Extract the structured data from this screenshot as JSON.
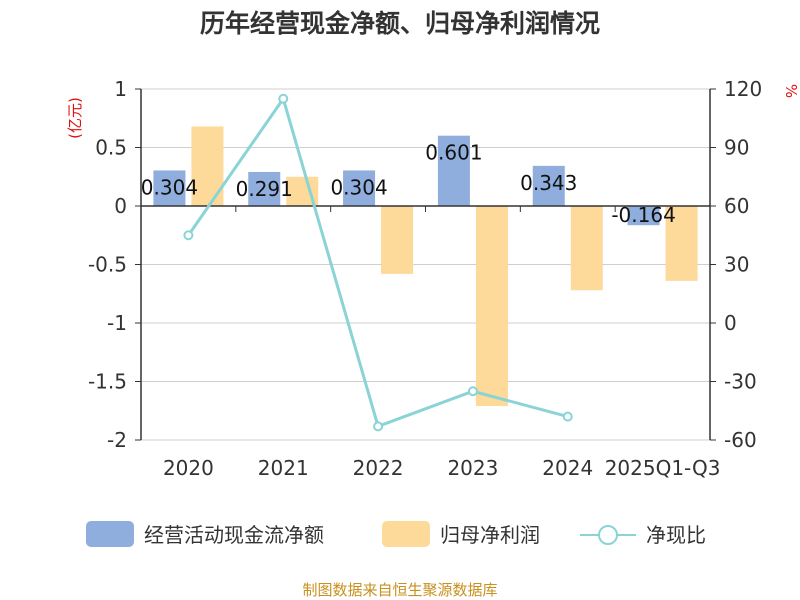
{
  "chart_data": {
    "type": "bar+line",
    "title": "历年经营现金净额、归母净利润情况",
    "categories": [
      "2020",
      "2021",
      "2022",
      "2023",
      "2024",
      "2025Q1-Q3"
    ],
    "left_axis": {
      "unit": "(亿元)",
      "range": [
        -2,
        1
      ],
      "ticks": [
        "1",
        "0.5",
        "0",
        "-0.5",
        "-1",
        "-1.5",
        "-2"
      ],
      "tick_values": [
        1,
        0.5,
        0,
        -0.5,
        -1,
        -1.5,
        -2
      ]
    },
    "right_axis": {
      "unit": "%",
      "range": [
        -60,
        120
      ],
      "ticks": [
        "120",
        "90",
        "60",
        "30",
        "0",
        "-30",
        "-60"
      ],
      "tick_values": [
        120,
        90,
        60,
        30,
        0,
        -30,
        -60
      ]
    },
    "series": [
      {
        "name": "经营活动现金流净额",
        "type": "bar",
        "axis": "left",
        "color": "#8faedd",
        "values": [
          0.304,
          0.291,
          0.304,
          0.601,
          0.343,
          -0.164
        ],
        "labels": [
          "0.304",
          "0.291",
          "0.304",
          "0.601",
          "0.343",
          "-0.164"
        ]
      },
      {
        "name": "归母净利润",
        "type": "bar",
        "axis": "left",
        "color": "#fdd99a",
        "values": [
          0.68,
          0.25,
          -0.58,
          -1.71,
          -0.72,
          -0.64
        ]
      },
      {
        "name": "净现比",
        "type": "line",
        "axis": "right",
        "color": "#8ad3d6",
        "values": [
          45,
          115,
          -53,
          -35,
          -48,
          null
        ]
      }
    ]
  },
  "legend": {
    "items": [
      "经营活动现金流净额",
      "归母净利润",
      "净现比"
    ]
  },
  "source": "制图数据来自恒生聚源数据库"
}
